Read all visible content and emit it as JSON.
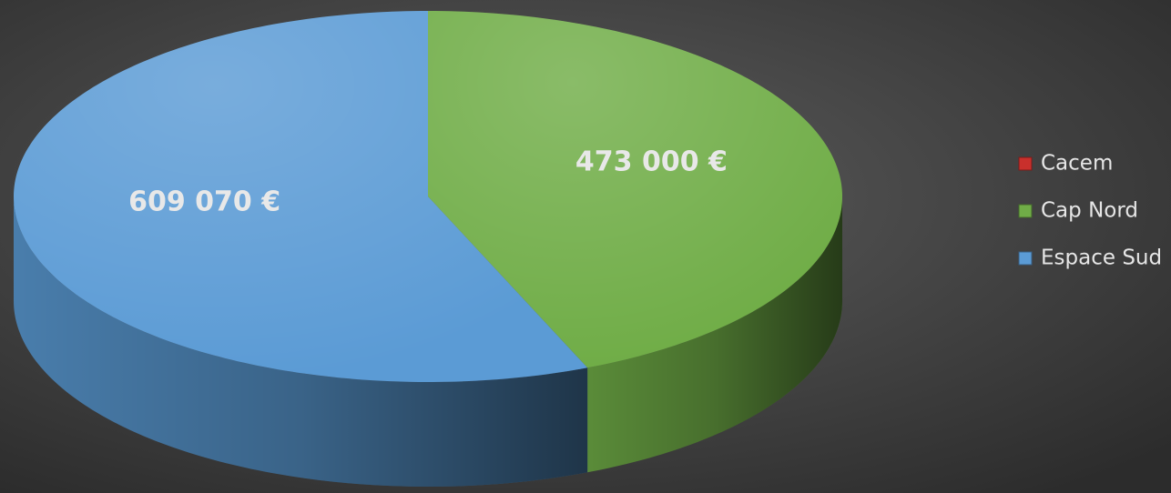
{
  "chart_data": {
    "type": "pie3d",
    "categories": [
      "Cacem",
      "Cap Nord",
      "Espace Sud"
    ],
    "values": [
      0,
      473000,
      609070
    ],
    "value_labels": [
      null,
      "473 000 €",
      "609 070 €"
    ],
    "colors": [
      "#c9302c",
      "#70ad47",
      "#5b9bd5"
    ],
    "legend": "right"
  }
}
